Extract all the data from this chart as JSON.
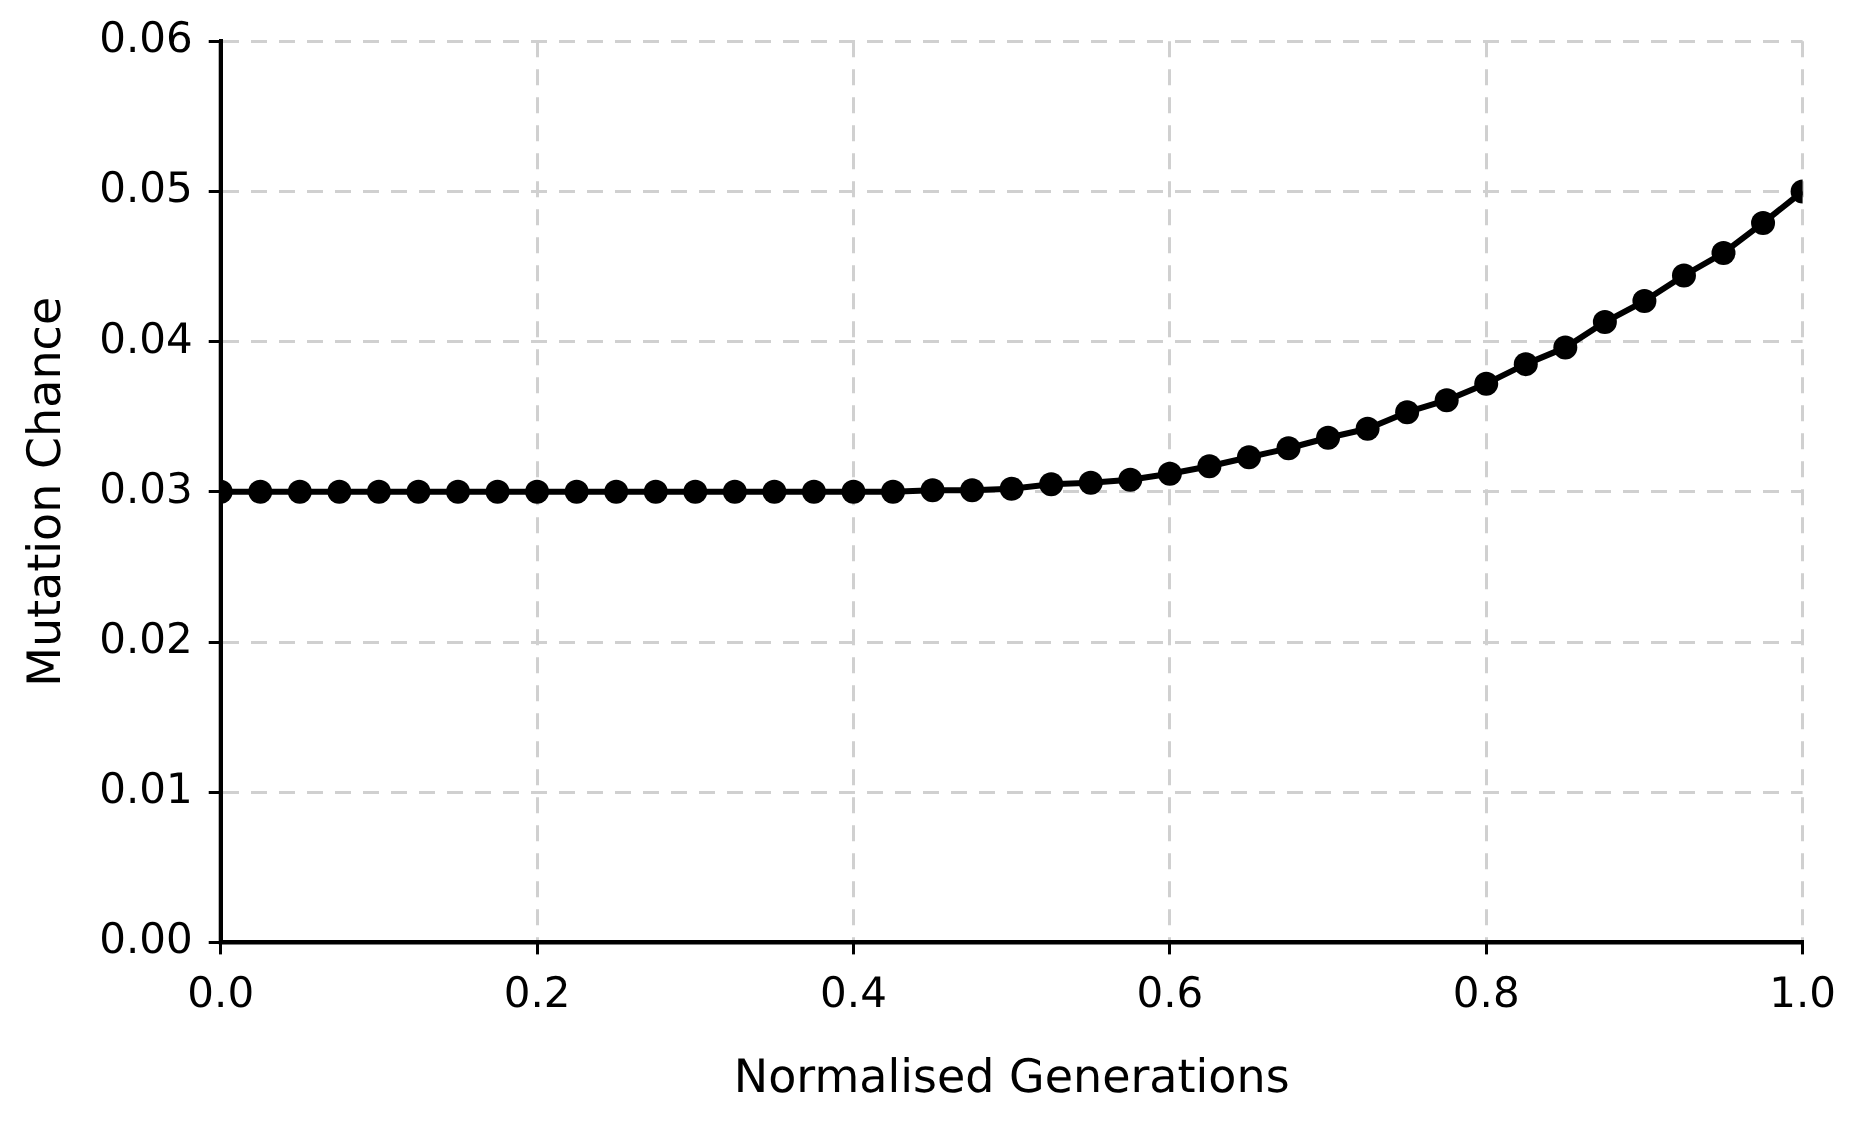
{
  "chart_data": {
    "type": "line",
    "xlabel": "Normalised Generations",
    "ylabel": "Mutation Chance",
    "x": [
      0,
      0.025,
      0.05,
      0.075,
      0.1,
      0.125,
      0.15,
      0.175,
      0.2,
      0.225,
      0.25,
      0.275,
      0.3,
      0.325,
      0.35,
      0.375,
      0.4,
      0.425,
      0.45,
      0.475,
      0.5,
      0.525,
      0.55,
      0.575,
      0.6,
      0.625,
      0.65,
      0.675,
      0.7,
      0.725,
      0.75,
      0.775,
      0.8,
      0.825,
      0.85,
      0.875,
      0.9,
      0.925,
      0.95,
      0.975,
      1
    ],
    "series": [
      {
        "color": "#000000",
        "values": [
          0.03,
          0.03,
          0.03,
          0.03,
          0.03,
          0.03,
          0.03,
          0.03,
          0.03,
          0.03,
          0.03,
          0.03,
          0.03,
          0.03,
          0.03,
          0.03,
          0.03,
          0.03,
          0.0301,
          0.0301,
          0.0302,
          0.0305,
          0.0306,
          0.0308,
          0.0312,
          0.0317,
          0.0323,
          0.0329,
          0.0336,
          0.0342,
          0.0353,
          0.0361,
          0.0372,
          0.0385,
          0.0396,
          0.0413,
          0.0427,
          0.0444,
          0.0459,
          0.0479,
          0.05
        ]
      }
    ],
    "xlim": [
      0,
      1
    ],
    "xticks": [
      {
        "value": 0,
        "label": "0.0"
      },
      {
        "value": 0.2,
        "label": "0.2"
      },
      {
        "value": 0.4,
        "label": "0.4"
      },
      {
        "value": 0.6,
        "label": "0.6"
      },
      {
        "value": 0.8,
        "label": "0.8"
      },
      {
        "value": 1,
        "label": "1.0"
      }
    ],
    "ylim": [
      0,
      0.06
    ],
    "yticks": [
      {
        "value": 0,
        "label": "0.00"
      },
      {
        "value": 0.01,
        "label": "0.01"
      },
      {
        "value": 0.02,
        "label": "0.02"
      },
      {
        "value": 0.03,
        "label": "0.03"
      },
      {
        "value": 0.04,
        "label": "0.04"
      },
      {
        "value": 0.05,
        "label": "0.05"
      },
      {
        "value": 0.06,
        "label": "0.06"
      }
    ],
    "grid": true,
    "legend": false,
    "marker": "circle",
    "line_style": "solid"
  }
}
